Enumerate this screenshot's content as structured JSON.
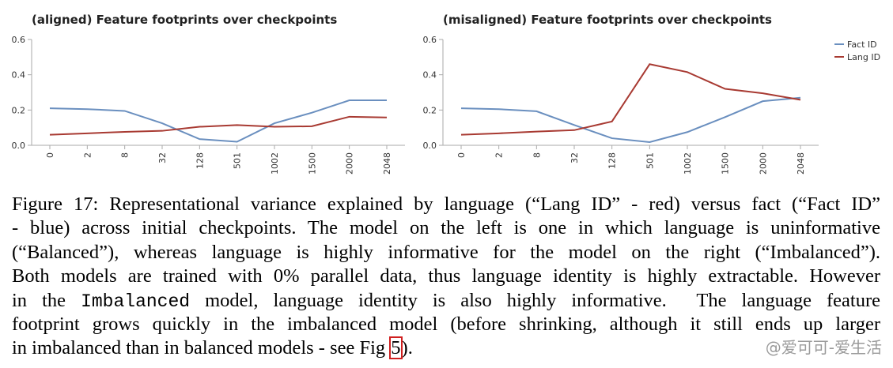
{
  "chart_data": [
    {
      "type": "line",
      "title": "(aligned) Feature footprints over checkpoints",
      "categories": [
        "0",
        "2",
        "8",
        "32",
        "128",
        "501",
        "1002",
        "1500",
        "2000",
        "2048"
      ],
      "series": [
        {
          "name": "Fact ID",
          "color": "#6a8fbf",
          "values": [
            0.21,
            0.205,
            0.195,
            0.125,
            0.035,
            0.02,
            0.125,
            0.185,
            0.255,
            0.255
          ]
        },
        {
          "name": "Lang ID",
          "color": "#a83a32",
          "values": [
            0.06,
            0.068,
            0.076,
            0.082,
            0.105,
            0.115,
            0.105,
            0.108,
            0.162,
            0.158
          ]
        }
      ],
      "ylim": [
        0,
        0.6
      ],
      "yticks": [
        {
          "value": 0,
          "label": "0.0"
        },
        0.2,
        0.4,
        0.6
      ]
    },
    {
      "type": "line",
      "title": "(misaligned) Feature footprints over checkpoints",
      "categories": [
        "0",
        "2",
        "8",
        "32",
        "128",
        "501",
        "1002",
        "1500",
        "2000",
        "2048"
      ],
      "series": [
        {
          "name": "Fact ID",
          "color": "#6a8fbf",
          "values": [
            0.21,
            0.205,
            0.193,
            0.115,
            0.04,
            0.018,
            0.075,
            0.16,
            0.25,
            0.27
          ]
        },
        {
          "name": "Lang ID",
          "color": "#a83a32",
          "values": [
            0.06,
            0.068,
            0.078,
            0.086,
            0.135,
            0.46,
            0.415,
            0.32,
            0.295,
            0.258
          ]
        }
      ],
      "ylim": [
        0,
        0.6
      ],
      "yticks": [
        {
          "value": 0,
          "label": "0.0"
        },
        0.2,
        0.4,
        0.6
      ],
      "legend": "top-right"
    }
  ],
  "caption": [
    [
      "Figure 17: Representational variance explained by language (“Lang ID” - red) versus fact (“Fact ID”"
    ],
    [
      "- blue) across initial checkpoints. The model on the left is one in which language is uninformative"
    ],
    [
      "(“Balanced”), whereas language is highly informative for the model on the right (“Imbalanced”)."
    ],
    [
      "Both models are trained with 0% parallel data, thus language identity is highly extractable. However"
    ],
    [
      "in the ",
      "Imbalanced",
      " model, language identity is also highly informative.  The language feature"
    ],
    [
      "footprint grows quickly in the imbalanced model (before shrinking, although it still ends up larger"
    ],
    [
      "in imbalanced than in balanced models - see Fig ",
      "5",
      ")."
    ]
  ],
  "watermark": "@爱可可-爱生活"
}
